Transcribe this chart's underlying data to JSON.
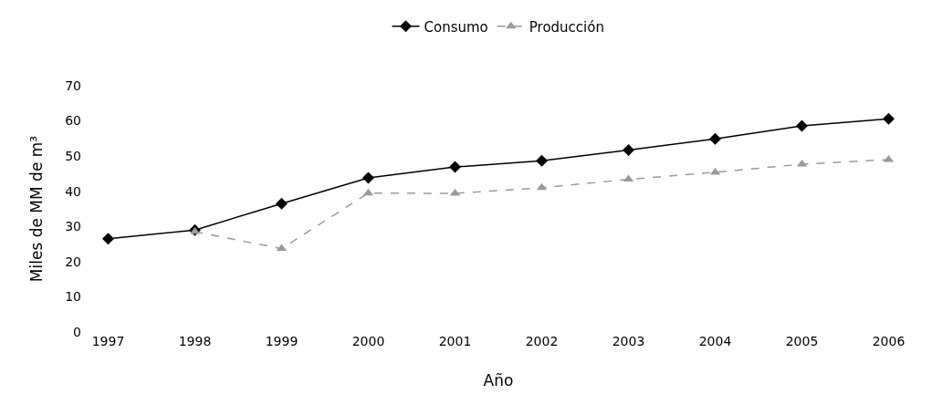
{
  "chart_data": {
    "type": "line",
    "xlabel": "Año",
    "ylabel": "Miles de MM de m³",
    "categories": [
      "1997",
      "1998",
      "1999",
      "2000",
      "2001",
      "2002",
      "2003",
      "2004",
      "2005",
      "2006"
    ],
    "series": [
      {
        "name": "Consumo",
        "color": "#000000",
        "marker": "diamond",
        "line_style": "solid",
        "values": [
          26.5,
          29,
          36.5,
          43.8,
          46.9,
          48.7,
          51.7,
          54.9,
          58.6,
          60.6
        ]
      },
      {
        "name": "Producción",
        "color": "#9a9a9a",
        "marker": "triangle",
        "line_style": "dashed",
        "values": [
          null,
          28.5,
          23.7,
          39.5,
          39.4,
          41,
          43.4,
          45.4,
          47.7,
          49
        ]
      }
    ],
    "ylim": [
      0,
      70
    ],
    "yticks": [
      0,
      10,
      20,
      30,
      40,
      50,
      60,
      70
    ],
    "legend": "top"
  }
}
